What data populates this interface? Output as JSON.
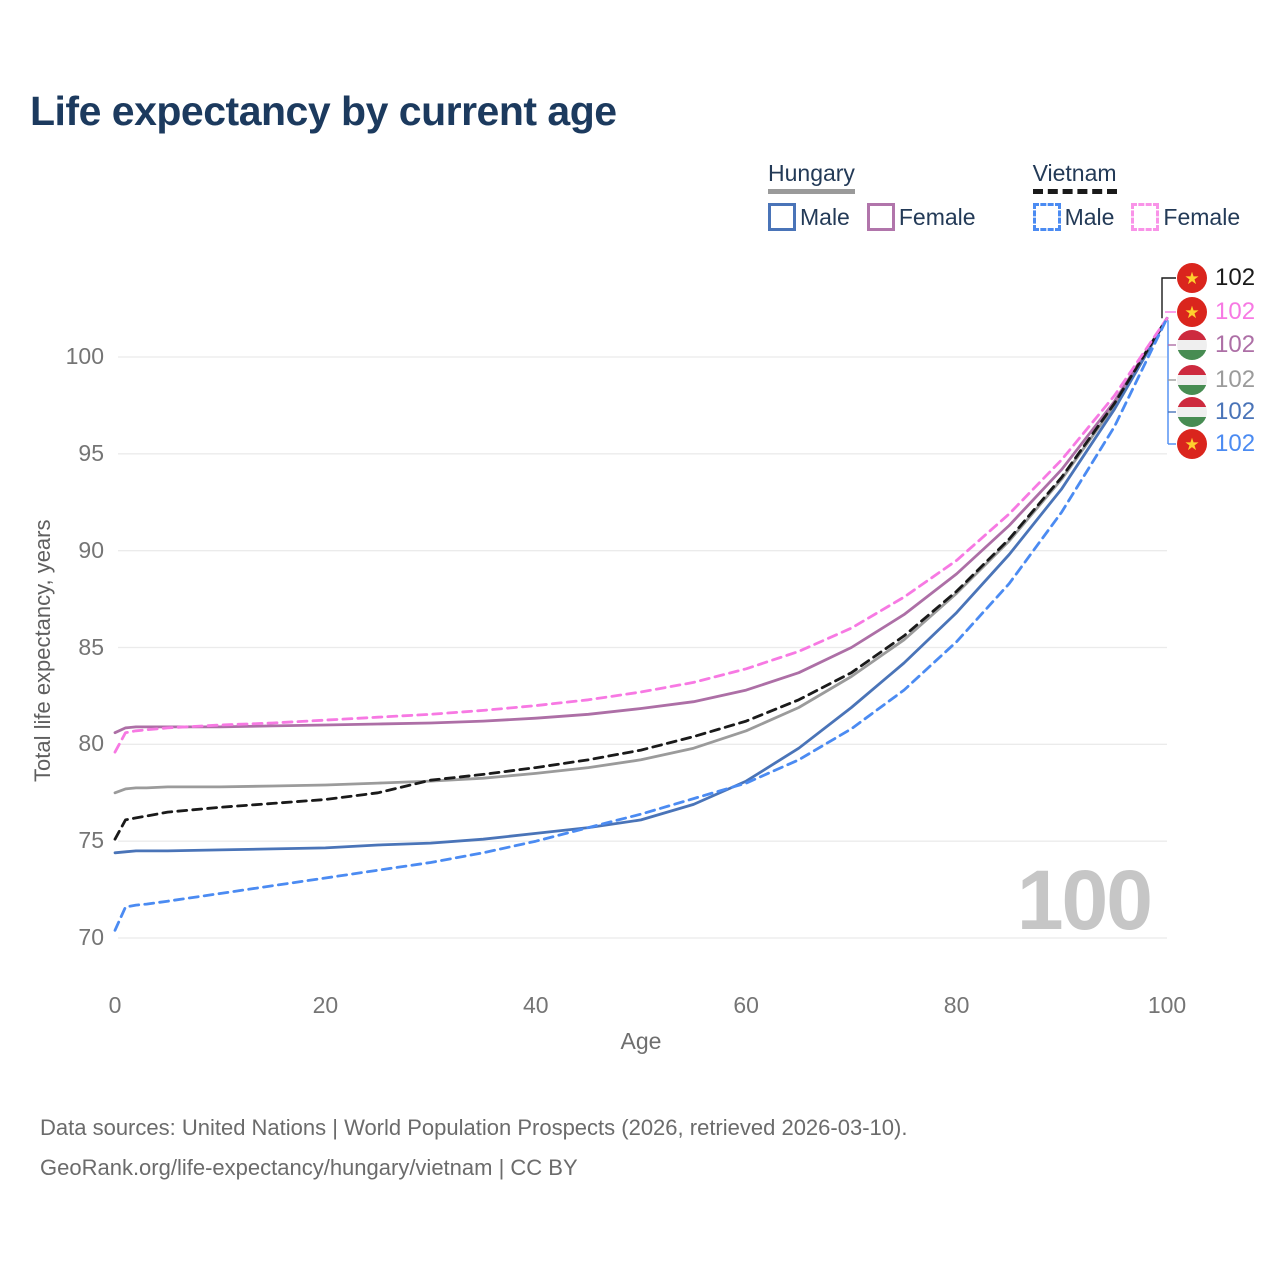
{
  "title": "Life expectancy by current age",
  "legend": {
    "hungary": {
      "label": "Hungary",
      "male_label": "Male",
      "female_label": "Female"
    },
    "vietnam": {
      "label": "Vietnam",
      "male_label": "Male",
      "female_label": "Female"
    }
  },
  "axes": {
    "x_label": "Age",
    "y_label": "Total life expectancy, years"
  },
  "watermark": "100",
  "footer": {
    "line1": "Data sources: United Nations | World Population Prospects (2026, retrieved 2026-03-10).",
    "line2": "GeoRank.org/life-expectancy/hungary/vietnam | CC BY"
  },
  "colors": {
    "title_text": "#1c3a5e",
    "legend_text": "#233a57",
    "grid": "#ebebeb",
    "tick_text": "#757575",
    "watermark": "#c6c6c6",
    "hungary_underline": "#9a9a9a",
    "vietnam_underline": "#1a1a1a"
  },
  "chart_data": {
    "type": "line",
    "title": "Life expectancy by current age",
    "xlabel": "Age",
    "ylabel": "Total life expectancy, years",
    "xlim": [
      0,
      100
    ],
    "ylim": [
      69,
      103
    ],
    "x_ticks": [
      0,
      20,
      40,
      60,
      80,
      100
    ],
    "y_ticks": [
      70,
      75,
      80,
      85,
      90,
      95,
      100
    ],
    "grid": "horizontal-only",
    "legend_position": "top-right",
    "ages": [
      0,
      1,
      2,
      3,
      5,
      10,
      15,
      20,
      25,
      30,
      35,
      40,
      45,
      50,
      55,
      60,
      65,
      70,
      75,
      80,
      85,
      90,
      95,
      100
    ],
    "series": [
      {
        "id": "hungary_total",
        "name": "Hungary",
        "color": "#9b9b9b",
        "dashed": false,
        "values": [
          77.5,
          77.7,
          77.75,
          77.75,
          77.8,
          77.8,
          77.85,
          77.9,
          78.0,
          78.1,
          78.25,
          78.5,
          78.8,
          79.2,
          79.8,
          80.7,
          81.9,
          83.5,
          85.4,
          87.8,
          90.5,
          93.7,
          97.5,
          102
        ]
      },
      {
        "id": "hungary_female",
        "name": "Hungary Female",
        "color": "#ad6fa6",
        "dashed": false,
        "values": [
          80.6,
          80.85,
          80.9,
          80.9,
          80.9,
          80.9,
          80.95,
          81.0,
          81.05,
          81.1,
          81.2,
          81.35,
          81.55,
          81.85,
          82.2,
          82.8,
          83.7,
          85.0,
          86.7,
          88.8,
          91.3,
          94.2,
          97.7,
          102
        ]
      },
      {
        "id": "hungary_male",
        "name": "Hungary Male",
        "color": "#4a74b8",
        "dashed": false,
        "values": [
          74.4,
          74.45,
          74.5,
          74.5,
          74.5,
          74.55,
          74.6,
          74.65,
          74.8,
          74.9,
          75.1,
          75.4,
          75.7,
          76.1,
          76.9,
          78.1,
          79.8,
          81.9,
          84.2,
          86.8,
          89.8,
          93.2,
          97.3,
          102
        ]
      },
      {
        "id": "vietnam_total",
        "name": "Vietnam",
        "color": "#1a1a1a",
        "dashed": true,
        "values": [
          75.1,
          76.1,
          76.2,
          76.3,
          76.5,
          76.75,
          76.95,
          77.15,
          77.5,
          78.15,
          78.45,
          78.8,
          79.2,
          79.7,
          80.4,
          81.2,
          82.3,
          83.7,
          85.6,
          87.9,
          90.6,
          93.8,
          97.6,
          102
        ]
      },
      {
        "id": "vietnam_female",
        "name": "Vietnam Female",
        "color": "#f779e3",
        "dashed": true,
        "values": [
          79.6,
          80.6,
          80.7,
          80.75,
          80.85,
          81.0,
          81.1,
          81.25,
          81.4,
          81.55,
          81.75,
          82.0,
          82.3,
          82.7,
          83.2,
          83.9,
          84.8,
          86.0,
          87.6,
          89.5,
          91.9,
          94.7,
          98.0,
          102
        ]
      },
      {
        "id": "vietnam_male",
        "name": "Vietnam Male",
        "color": "#4b8bf2",
        "dashed": true,
        "values": [
          70.4,
          71.6,
          71.7,
          71.75,
          71.9,
          72.3,
          72.7,
          73.1,
          73.5,
          73.9,
          74.4,
          75.0,
          75.7,
          76.4,
          77.2,
          78.0,
          79.2,
          80.8,
          82.8,
          85.3,
          88.3,
          92.0,
          96.4,
          102
        ]
      }
    ],
    "end_labels": [
      {
        "value": "102",
        "flag": "vietnam",
        "series": "vietnam_total"
      },
      {
        "value": "102",
        "flag": "vietnam",
        "series": "vietnam_female"
      },
      {
        "value": "102",
        "flag": "hungary",
        "series": "hungary_female"
      },
      {
        "value": "102",
        "flag": "hungary",
        "series": "hungary_total"
      },
      {
        "value": "102",
        "flag": "hungary",
        "series": "hungary_male"
      },
      {
        "value": "102",
        "flag": "vietnam",
        "series": "vietnam_male"
      }
    ]
  }
}
